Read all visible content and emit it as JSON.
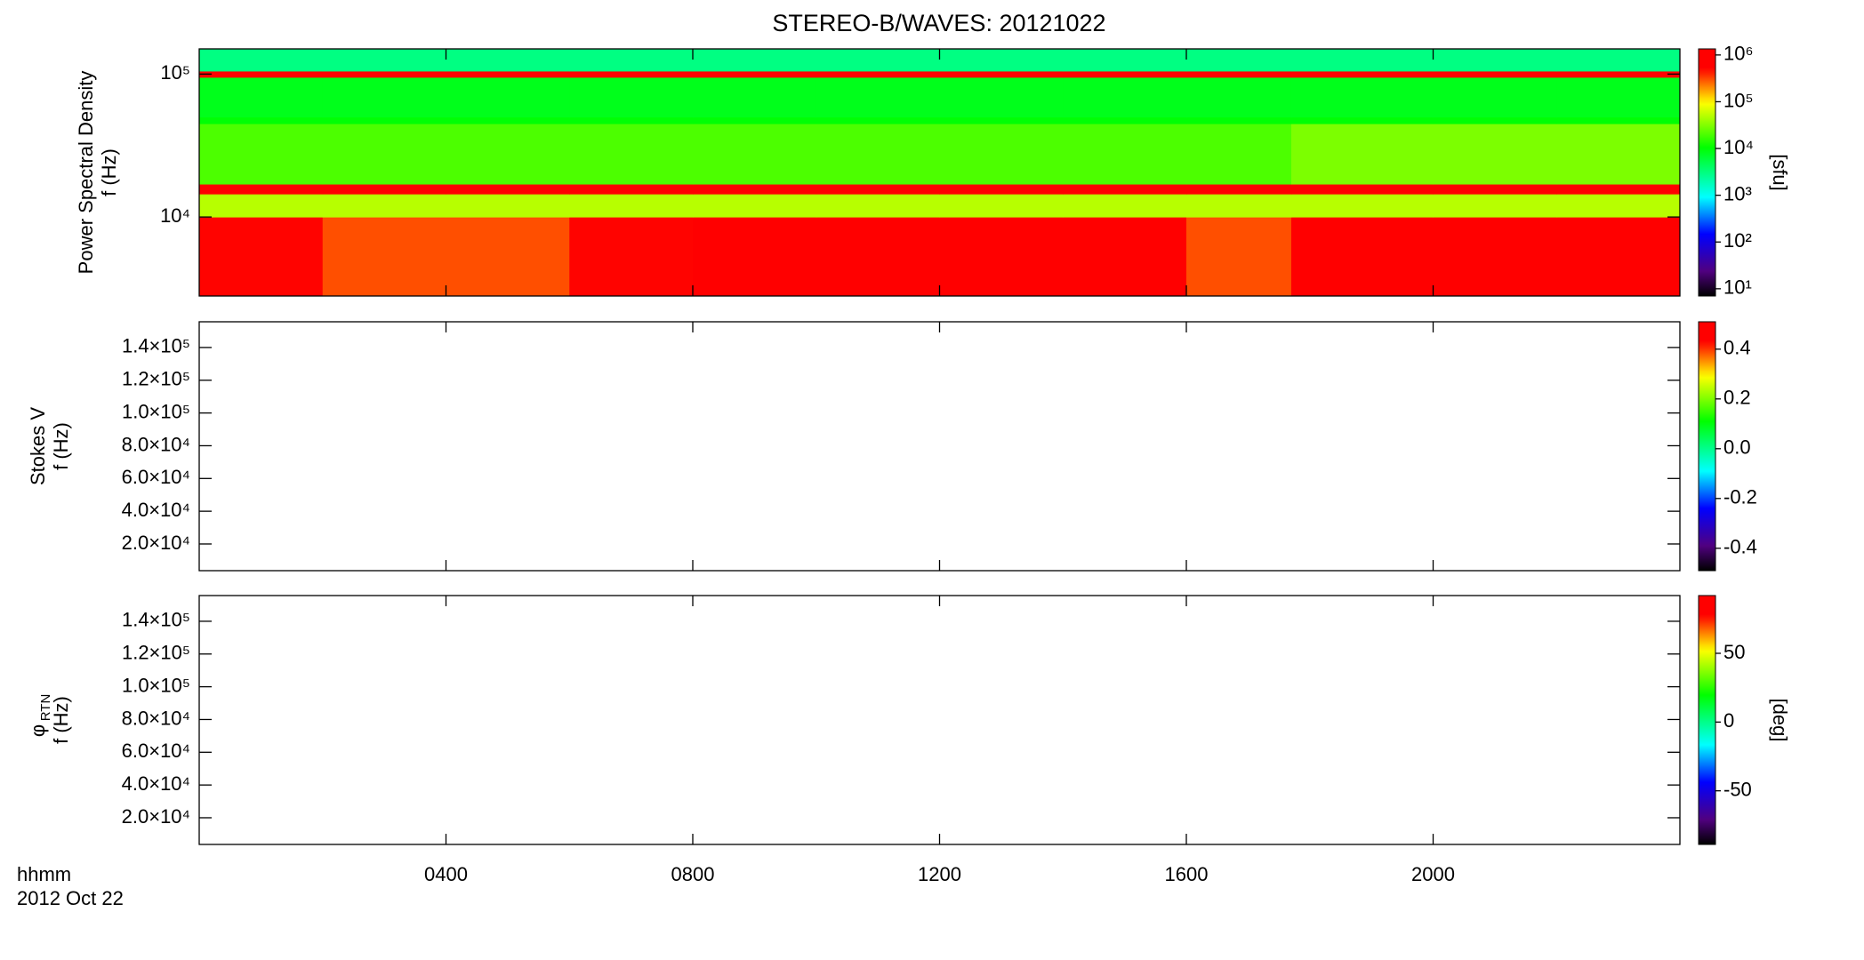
{
  "chart_data": [
    {
      "type": "heatmap",
      "title": "STEREO-B/WAVES: 20121022",
      "ylabel": "Power Spectral Density",
      "ylabel2": "f (Hz)",
      "xlim": [
        0,
        24
      ],
      "ylim": [
        2800,
        150000
      ],
      "log_y": true,
      "yticks": [
        {
          "value": 10000,
          "label": "10⁴"
        },
        {
          "value": 100000,
          "label": "10⁵"
        }
      ],
      "x_edges": [
        0,
        2,
        4,
        6,
        8,
        10,
        12,
        14,
        16,
        17.7,
        20,
        22,
        24
      ],
      "y_edges": [
        2800,
        10000,
        14500,
        17000,
        45000,
        50000,
        95000,
        105000,
        150000
      ],
      "values": [
        [
          500000,
          300000,
          300000,
          500000,
          800000,
          800000,
          600000,
          800000,
          300000,
          1000000,
          1000000,
          1000000
        ],
        [
          50000,
          50000,
          50000,
          50000,
          50000,
          50000,
          50000,
          50000,
          50000,
          50000,
          50000,
          50000
        ],
        [
          1000000,
          1000000,
          1000000,
          1000000,
          1000000,
          1000000,
          1000000,
          1000000,
          1000000,
          1000000,
          1000000,
          1000000
        ],
        [
          20000,
          20000,
          20000,
          20000,
          20000,
          20000,
          20000,
          20000,
          20000,
          30000,
          30000,
          30000
        ],
        [
          10000,
          10000,
          10000,
          10000,
          10000,
          10000,
          10000,
          10000,
          10000,
          10000,
          10000,
          10000
        ],
        [
          8000,
          8000,
          8000,
          8000,
          8000,
          8000,
          8000,
          8000,
          8000,
          8000,
          8000,
          8000
        ],
        [
          500000,
          500000,
          500000,
          500000,
          500000,
          500000,
          500000,
          500000,
          500000,
          500000,
          500000,
          500000
        ],
        [
          3000,
          3000,
          3000,
          3000,
          3000,
          3000,
          3000,
          3000,
          3000,
          3000,
          3000,
          3000
        ]
      ],
      "colormap": "rainbow",
      "colorbar": {
        "lim": [
          7,
          1350000
        ],
        "log": true,
        "label": "[sfu]",
        "ticks": [
          {
            "value": 10,
            "label": "10¹"
          },
          {
            "value": 100,
            "label": "10²"
          },
          {
            "value": 1000,
            "label": "10³"
          },
          {
            "value": 10000,
            "label": "10⁴"
          },
          {
            "value": 100000,
            "label": "10⁵"
          },
          {
            "value": 1000000,
            "label": "10⁶"
          }
        ]
      }
    },
    {
      "type": "heatmap",
      "ylabel": "Stokes V",
      "ylabel2": "f (Hz)",
      "xlim": [
        0,
        24
      ],
      "ylim": [
        3700,
        155700
      ],
      "log_y": false,
      "yticks": [
        {
          "value": 20000,
          "label": "2.0×10⁴"
        },
        {
          "value": 40000,
          "label": "4.0×10⁴"
        },
        {
          "value": 60000,
          "label": "6.0×10⁴"
        },
        {
          "value": 80000,
          "label": "8.0×10⁴"
        },
        {
          "value": 100000,
          "label": "1.0×10⁵"
        },
        {
          "value": 120000,
          "label": "1.2×10⁵"
        },
        {
          "value": 140000,
          "label": "1.4×10⁵"
        }
      ],
      "colormap": "rainbow",
      "colorbar": {
        "lim": [
          -0.49,
          0.51
        ],
        "log": false,
        "ticks": [
          -0.4,
          -0.2,
          {
            "value": 0,
            "label": "0.0"
          },
          0.2,
          0.4
        ]
      }
    },
    {
      "type": "heatmap",
      "ylabel": "φ",
      "ylabel_sub": "RTN",
      "ylabel2": "f (Hz)",
      "xlim": [
        0,
        24
      ],
      "ylim": [
        3700,
        155700
      ],
      "log_y": false,
      "yticks": [
        {
          "value": 20000,
          "label": "2.0×10⁴"
        },
        {
          "value": 40000,
          "label": "4.0×10⁴"
        },
        {
          "value": 60000,
          "label": "6.0×10⁴"
        },
        {
          "value": 80000,
          "label": "8.0×10⁴"
        },
        {
          "value": 100000,
          "label": "1.0×10⁵"
        },
        {
          "value": 120000,
          "label": "1.2×10⁵"
        },
        {
          "value": 140000,
          "label": "1.4×10⁵"
        }
      ],
      "xticks": [
        {
          "value": 4,
          "label": "0400"
        },
        {
          "value": 8,
          "label": "0800"
        },
        {
          "value": 12,
          "label": "1200"
        },
        {
          "value": 16,
          "label": "1600"
        },
        {
          "value": 20,
          "label": "2000"
        }
      ],
      "xlabel": "hhmm",
      "xlabel_date": "2012 Oct 22",
      "colormap": "rainbow",
      "colorbar": {
        "lim": [
          -89,
          92
        ],
        "log": false,
        "label": "[deg]",
        "ticks": [
          -50,
          0,
          50
        ]
      }
    }
  ]
}
